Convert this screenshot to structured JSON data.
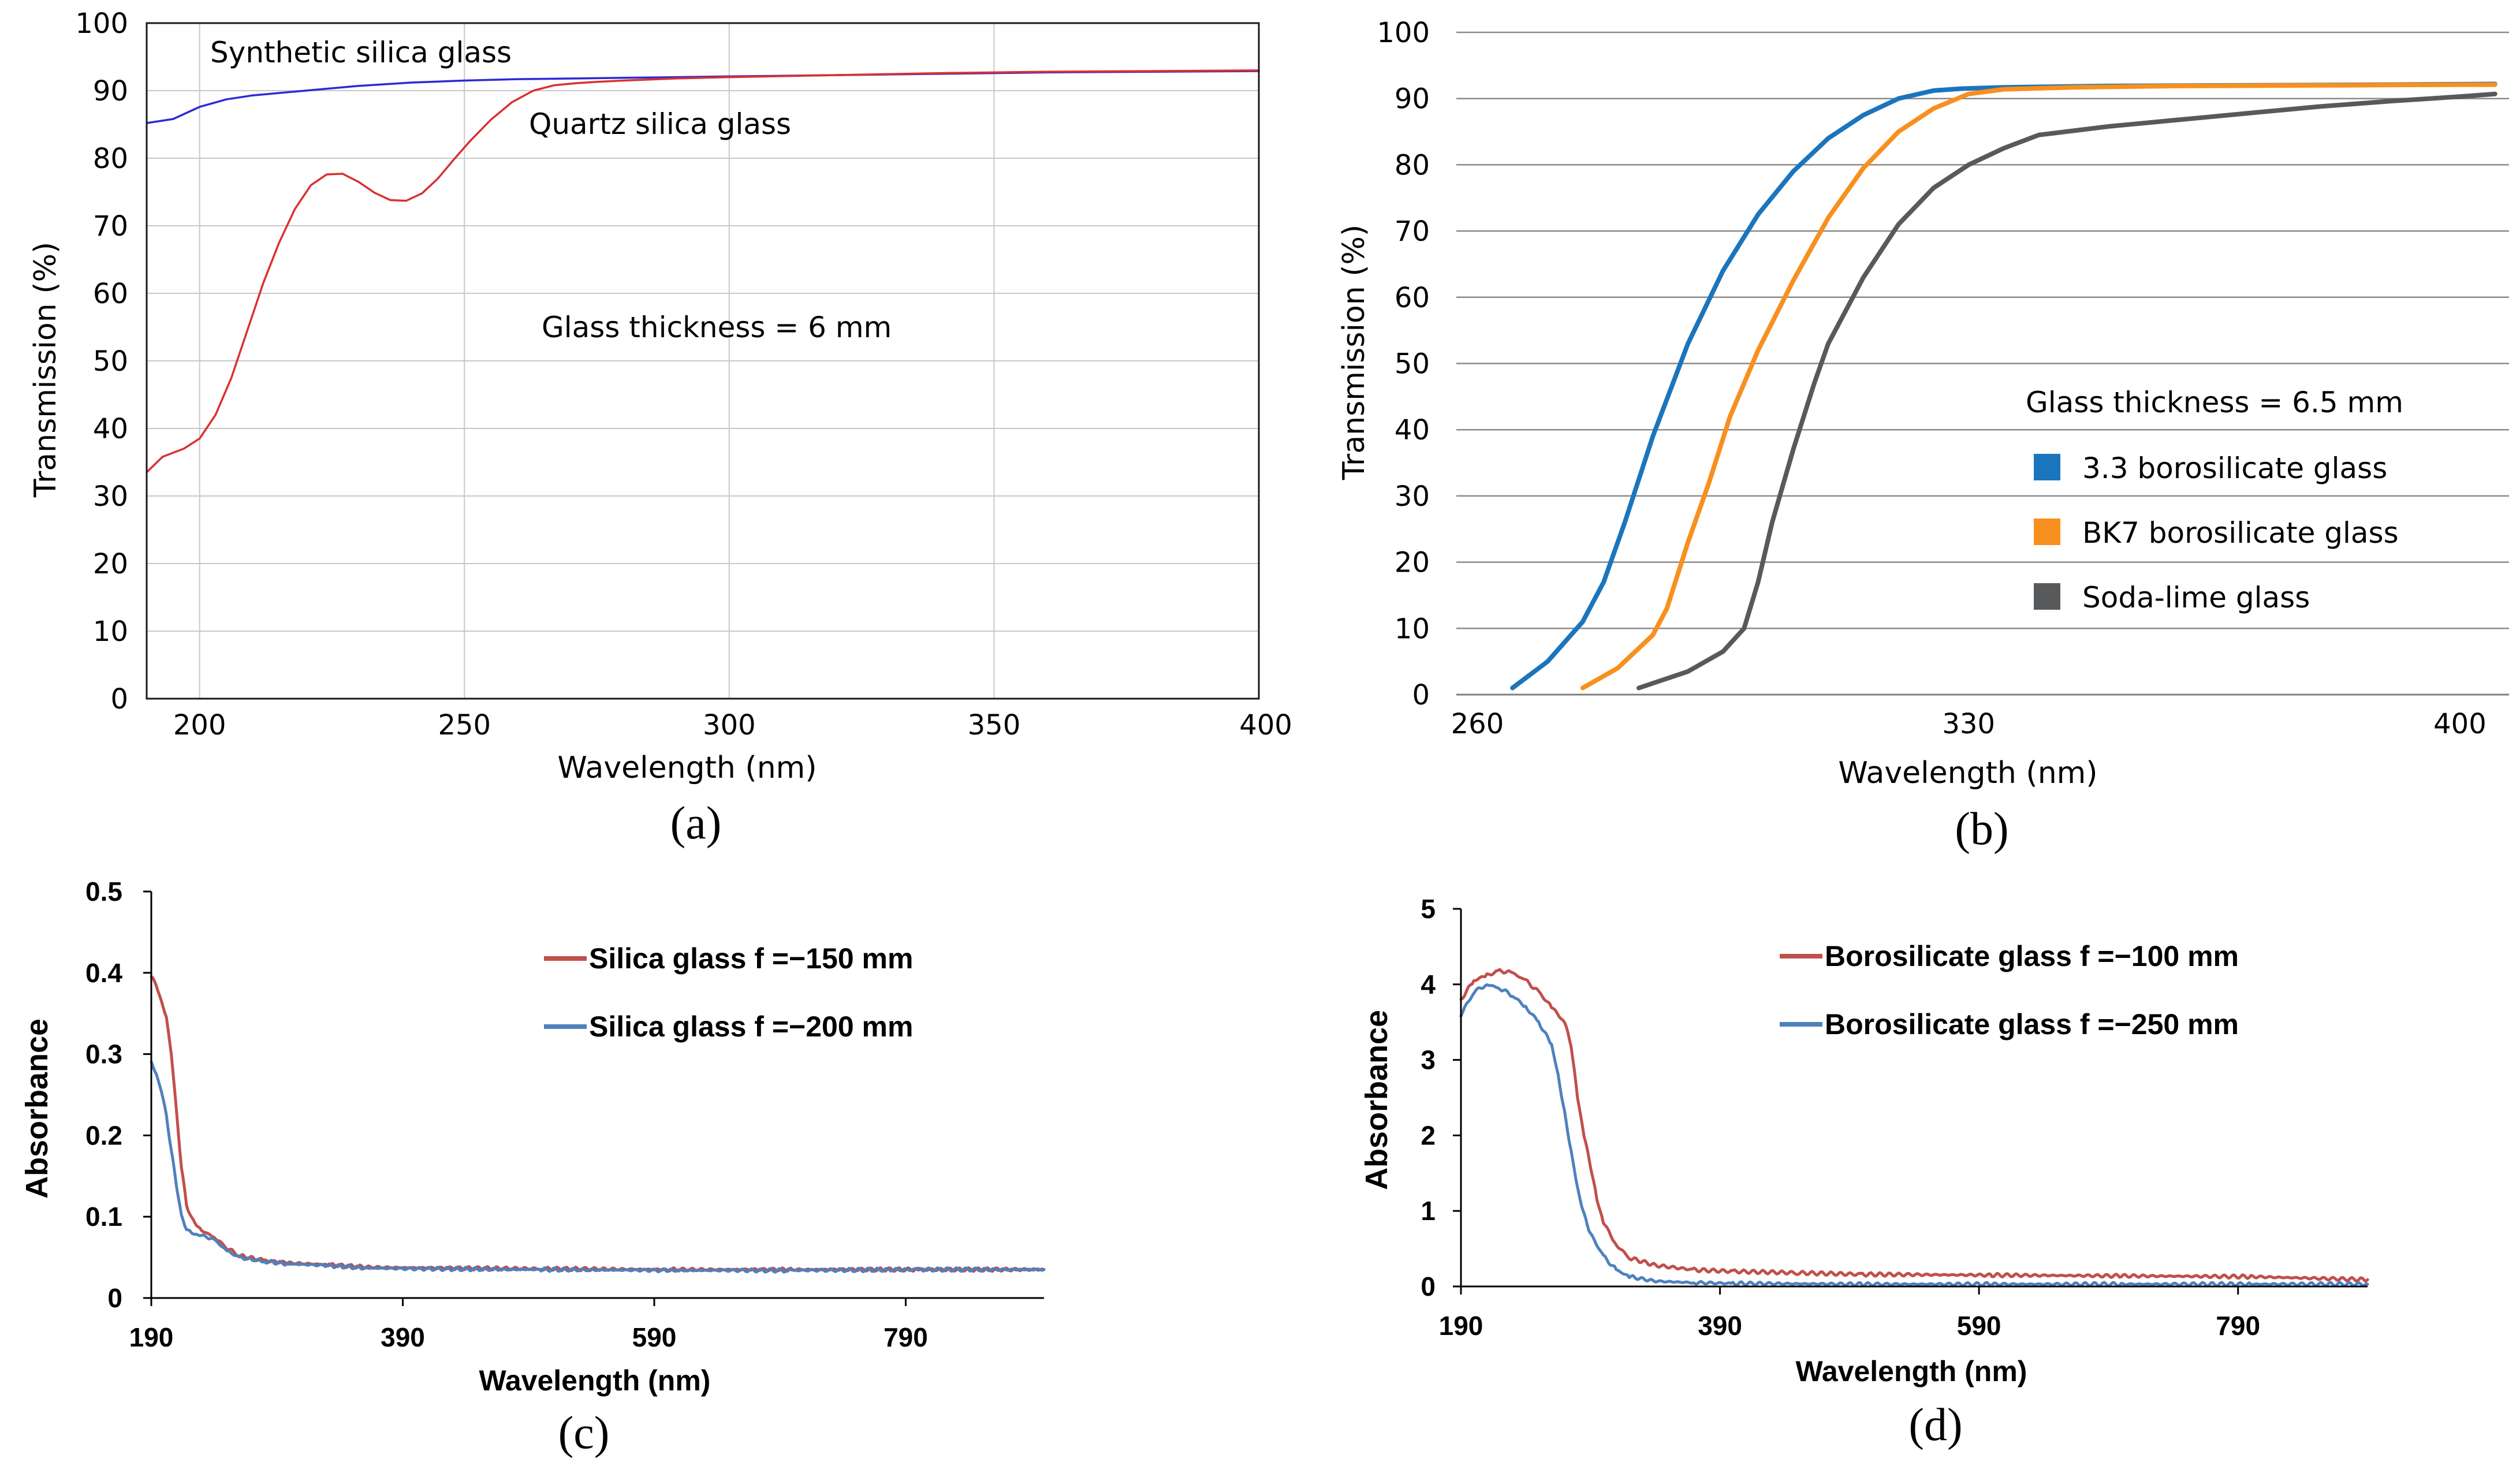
{
  "chart_data": [
    {
      "id": "a",
      "type": "line",
      "panel_label": "(a)",
      "xlabel": "Wavelength (nm)",
      "ylabel": "Transmission (%)",
      "xlim": [
        190,
        400
      ],
      "ylim": [
        0,
        100
      ],
      "xticks": [
        "200",
        "250",
        "300",
        "350",
        "400"
      ],
      "yticks": [
        "0",
        "10",
        "20",
        "30",
        "40",
        "50",
        "60",
        "70",
        "80",
        "90",
        "100"
      ],
      "grid": true,
      "annotations": {
        "synthetic": "Synthetic silica glass",
        "quartz": "Quartz silica glass",
        "thickness": "Glass thickness = 6 mm"
      },
      "series": [
        {
          "name": "Synthetic silica glass",
          "color": "#2b2bd6",
          "x": [
            190,
            195,
            200,
            205,
            210,
            220,
            230,
            240,
            250,
            260,
            280,
            300,
            320,
            340,
            360,
            380,
            400
          ],
          "y": [
            85.2,
            85.8,
            87.6,
            88.7,
            89.3,
            90.0,
            90.7,
            91.2,
            91.5,
            91.7,
            91.9,
            92.1,
            92.3,
            92.5,
            92.7,
            92.8,
            92.9
          ]
        },
        {
          "name": "Quartz silica glass",
          "color": "#d93030",
          "x": [
            190,
            193,
            197,
            200,
            203,
            206,
            209,
            212,
            215,
            218,
            221,
            224,
            227,
            230,
            233,
            236,
            239,
            242,
            245,
            248,
            251,
            255,
            259,
            263,
            267,
            271,
            275,
            280,
            290,
            300,
            320,
            340,
            360,
            380,
            400
          ],
          "y": [
            33.5,
            35.8,
            37.0,
            38.5,
            42.0,
            47.5,
            54.5,
            61.5,
            67.5,
            72.5,
            76.0,
            77.6,
            77.7,
            76.5,
            74.9,
            73.8,
            73.7,
            74.8,
            77.0,
            79.8,
            82.5,
            85.7,
            88.3,
            90.0,
            90.8,
            91.1,
            91.3,
            91.5,
            91.8,
            92.0,
            92.3,
            92.6,
            92.8,
            92.9,
            93.0
          ]
        }
      ]
    },
    {
      "id": "b",
      "type": "line",
      "panel_label": "(b)",
      "xlabel": "Wavelength (nm)",
      "ylabel": "Transmission (%)",
      "xlim": [
        257,
        407
      ],
      "ylim": [
        0,
        100
      ],
      "xticks": [
        "260",
        "330",
        "400"
      ],
      "yticks": [
        "0",
        "10",
        "20",
        "30",
        "40",
        "50",
        "60",
        "70",
        "80",
        "90",
        "100"
      ],
      "grid": "horizontal",
      "legend_title": "Glass thickness = 6.5 mm",
      "legend_position": "center-right",
      "series": [
        {
          "name": "3.3 borosilicate glass",
          "color": "#1b75bc",
          "x": [
            265,
            270,
            275,
            278,
            281,
            285,
            290,
            295,
            300,
            305,
            310,
            315,
            320,
            325,
            329,
            335,
            350,
            370,
            390,
            405
          ],
          "y": [
            1,
            5,
            11,
            17,
            26,
            39,
            53,
            64,
            72.5,
            79,
            84,
            87.5,
            90,
            91.2,
            91.5,
            91.7,
            91.9,
            92.0,
            92.1,
            92.2
          ]
        },
        {
          "name": "BK7 borosilicate glass",
          "color": "#f7901e",
          "x": [
            275,
            280,
            285,
            287,
            290,
            293,
            296,
            300,
            305,
            310,
            315,
            320,
            325,
            330,
            335,
            345,
            360,
            380,
            400,
            405
          ],
          "y": [
            1,
            4,
            9,
            13,
            23,
            32,
            42,
            52,
            62.5,
            72,
            79.5,
            85,
            88.5,
            90.7,
            91.4,
            91.7,
            91.9,
            92.0,
            92.1,
            92.1
          ]
        },
        {
          "name": "Soda-lime glass",
          "color": "#58595b",
          "x": [
            283,
            290,
            295,
            298,
            300,
            302,
            305,
            308,
            310,
            315,
            320,
            325,
            330,
            335,
            340,
            350,
            360,
            370,
            380,
            390,
            400,
            405
          ],
          "y": [
            1,
            3.5,
            6.5,
            10,
            17,
            26,
            37,
            47,
            53,
            63,
            71,
            76.5,
            80,
            82.5,
            84.5,
            85.8,
            86.8,
            87.8,
            88.8,
            89.6,
            90.3,
            90.7
          ]
        }
      ]
    },
    {
      "id": "c",
      "type": "line",
      "panel_label": "(c)",
      "xlabel": "Wavelength (nm)",
      "ylabel": "Absorbance",
      "xlim": [
        190,
        900
      ],
      "ylim": [
        0,
        0.5
      ],
      "xticks": [
        "190",
        "390",
        "590",
        "790"
      ],
      "yticks": [
        "0",
        "0.1",
        "0.2",
        "0.3",
        "0.4",
        "0.5"
      ],
      "grid": false,
      "legend_position": "top-right",
      "series": [
        {
          "name": "Silica glass f =−150 mm",
          "color": "#c0504d",
          "x": [
            190,
            194,
            198,
            202,
            206,
            210,
            214,
            218,
            222,
            226,
            230,
            240,
            250,
            260,
            280,
            300,
            330,
            360,
            400,
            500,
            600,
            700,
            800,
            900
          ],
          "y": [
            0.395,
            0.385,
            0.365,
            0.345,
            0.3,
            0.23,
            0.16,
            0.115,
            0.098,
            0.09,
            0.083,
            0.075,
            0.062,
            0.052,
            0.046,
            0.043,
            0.041,
            0.038,
            0.037,
            0.036,
            0.035,
            0.035,
            0.035,
            0.035
          ]
        },
        {
          "name": "Silica glass f =−200 mm",
          "color": "#4f81bd",
          "x": [
            190,
            194,
            198,
            202,
            206,
            210,
            214,
            218,
            222,
            226,
            230,
            240,
            250,
            260,
            280,
            300,
            330,
            360,
            400,
            500,
            600,
            700,
            800,
            900
          ],
          "y": [
            0.29,
            0.275,
            0.255,
            0.225,
            0.18,
            0.14,
            0.1,
            0.085,
            0.08,
            0.078,
            0.077,
            0.072,
            0.058,
            0.05,
            0.045,
            0.042,
            0.04,
            0.037,
            0.036,
            0.035,
            0.034,
            0.034,
            0.035,
            0.035
          ]
        }
      ]
    },
    {
      "id": "d",
      "type": "line",
      "panel_label": "(d)",
      "xlabel": "Wavelength (nm)",
      "ylabel": "Absorbance",
      "xlim": [
        190,
        890
      ],
      "ylim": [
        0,
        5
      ],
      "xticks": [
        "190",
        "390",
        "590",
        "790"
      ],
      "yticks": [
        "0",
        "1",
        "2",
        "3",
        "4",
        "5"
      ],
      "grid": false,
      "legend_position": "top-right",
      "series": [
        {
          "name": "Borosilicate glass f =−100 mm",
          "color": "#c0504d",
          "x": [
            190,
            200,
            210,
            220,
            230,
            240,
            250,
            260,
            270,
            275,
            280,
            285,
            290,
            295,
            300,
            310,
            320,
            340,
            370,
            400,
            450,
            500,
            600,
            700,
            800,
            890
          ],
          "y": [
            3.8,
            4.05,
            4.12,
            4.18,
            4.15,
            4.05,
            3.9,
            3.7,
            3.5,
            3.2,
            2.5,
            2.0,
            1.6,
            1.15,
            0.85,
            0.55,
            0.38,
            0.28,
            0.22,
            0.2,
            0.18,
            0.16,
            0.15,
            0.14,
            0.13,
            0.09
          ]
        },
        {
          "name": "Borosilicate glass f =−250 mm",
          "color": "#4f81bd",
          "x": [
            190,
            200,
            210,
            220,
            230,
            240,
            250,
            260,
            265,
            270,
            275,
            280,
            285,
            290,
            300,
            310,
            320,
            340,
            370,
            400,
            500,
            600,
            700,
            800,
            890
          ],
          "y": [
            3.6,
            3.9,
            4.0,
            3.95,
            3.85,
            3.7,
            3.5,
            3.2,
            2.8,
            2.3,
            1.8,
            1.3,
            0.95,
            0.7,
            0.4,
            0.22,
            0.13,
            0.07,
            0.05,
            0.04,
            0.03,
            0.03,
            0.03,
            0.03,
            0.03
          ]
        }
      ]
    }
  ]
}
